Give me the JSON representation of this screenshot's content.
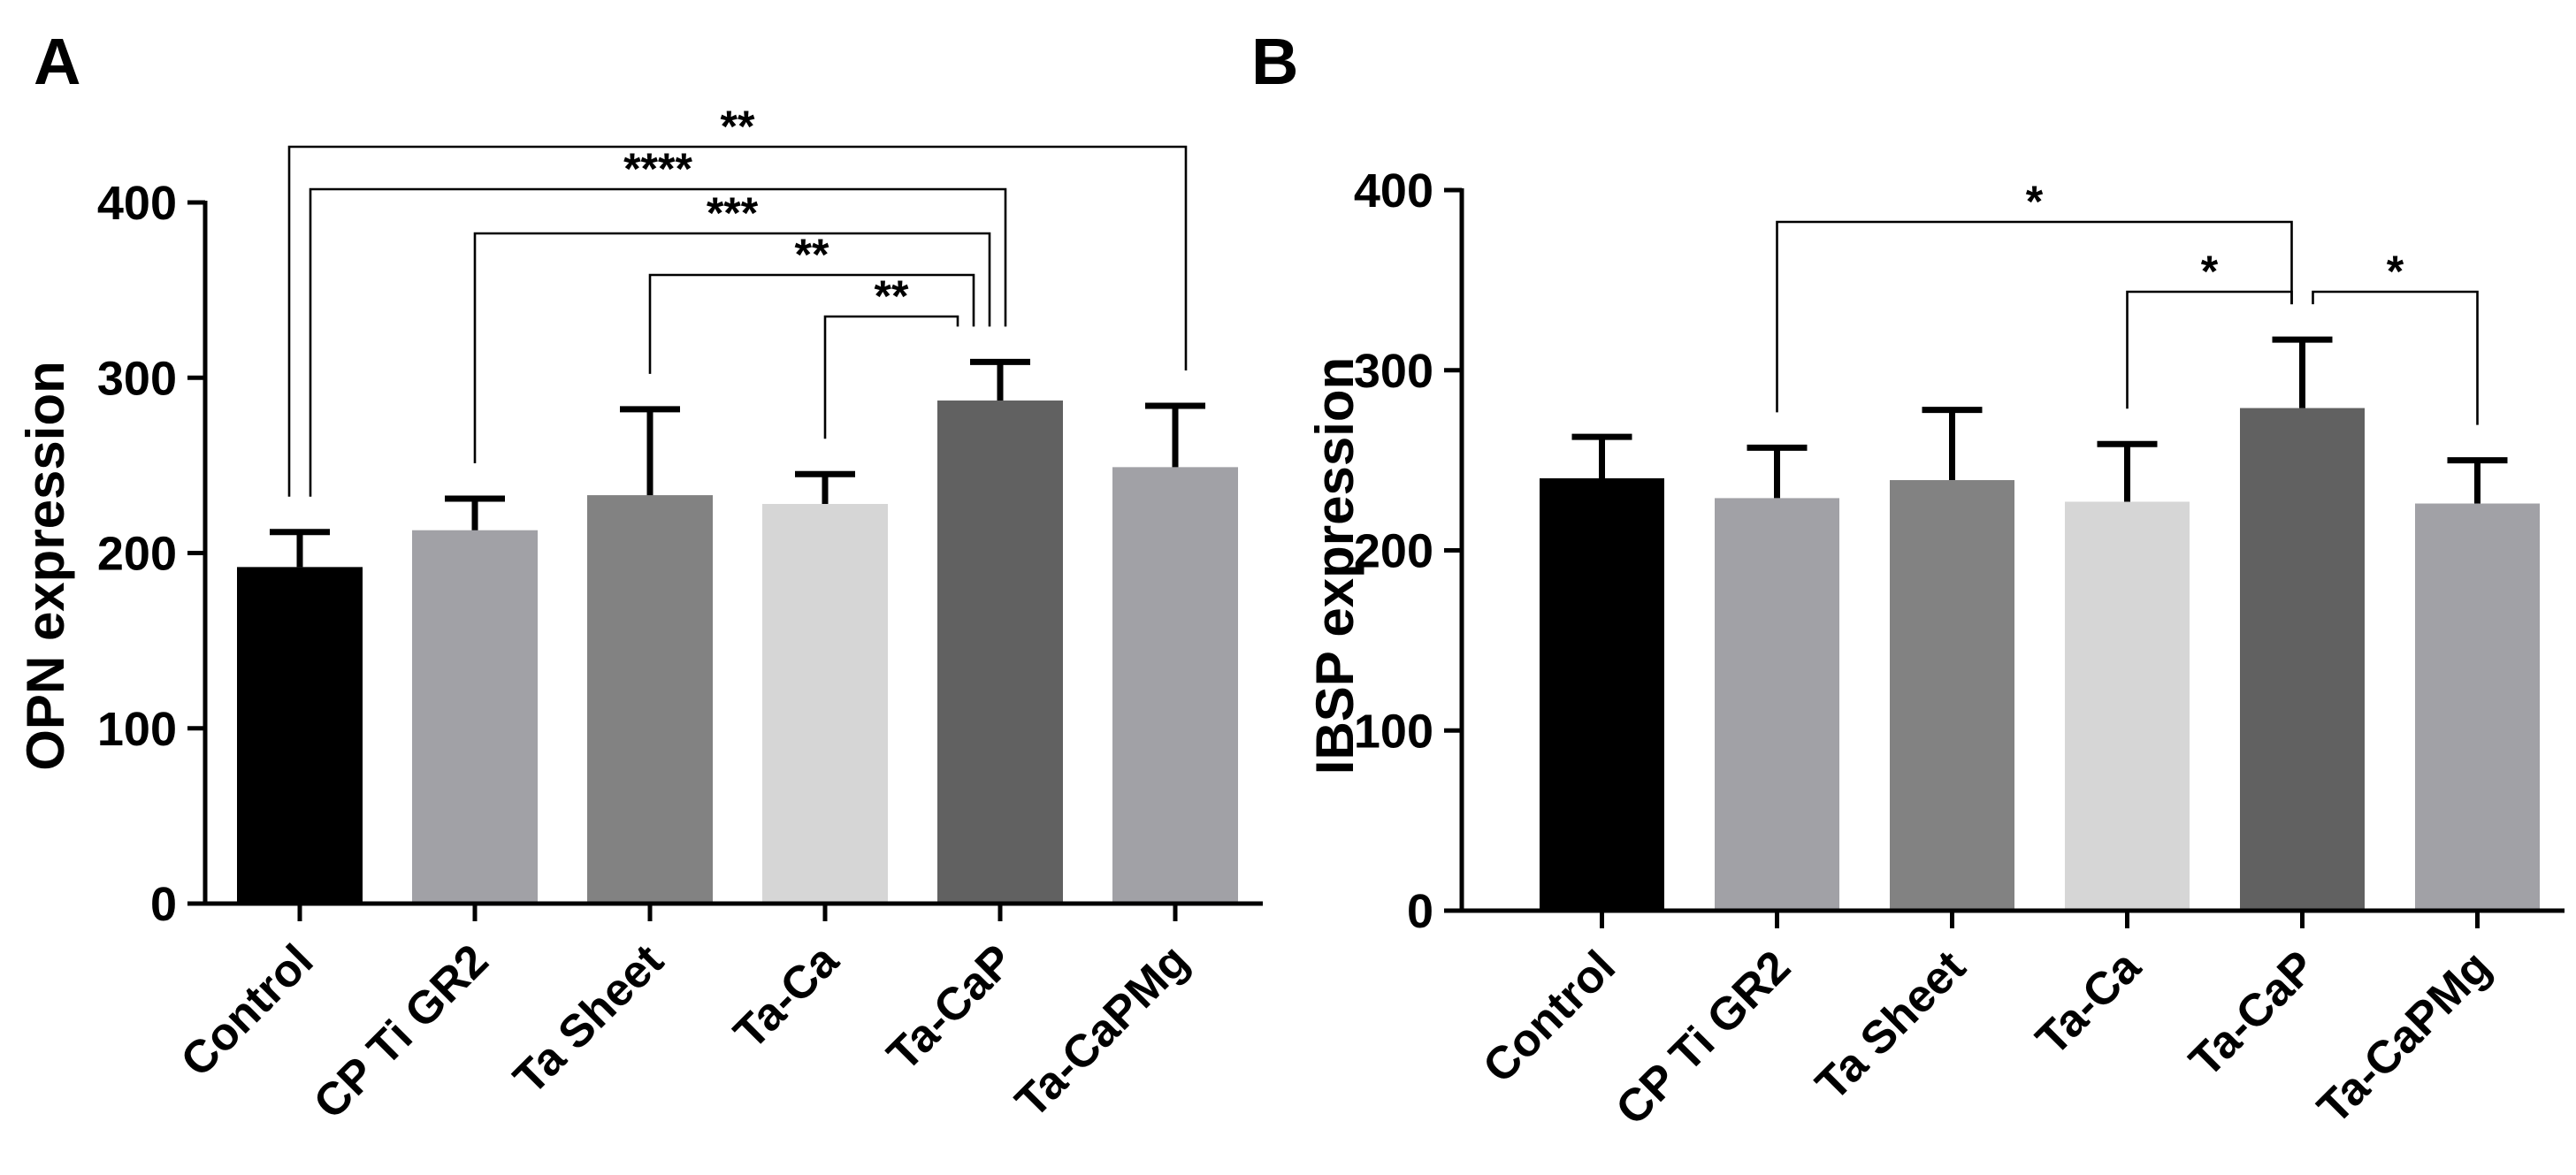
{
  "chart_data": [
    {
      "type": "bar",
      "panel_label": "A",
      "ylabel": "OPN expression",
      "ylim": [
        0,
        400
      ],
      "yticks": [
        "0",
        "100",
        "200",
        "300",
        "400"
      ],
      "categories": [
        "Control",
        "CP Ti GR2",
        "Ta Sheet",
        "Ta-Ca",
        "Ta-CaP",
        "Ta-CaPMg"
      ],
      "values": [
        192,
        213,
        233,
        228,
        287,
        249
      ],
      "errors": [
        20,
        18,
        49,
        17,
        22,
        35
      ],
      "colors": [
        "#000000",
        "#a1a1a6",
        "#828282",
        "#d6d6d6",
        "#616161",
        "#a1a1a6"
      ],
      "significance": [
        {
          "from": 0,
          "to": 5,
          "label": "**"
        },
        {
          "from": 0,
          "to": 4,
          "label": "****"
        },
        {
          "from": 1,
          "to": 4,
          "label": "***"
        },
        {
          "from": 2,
          "to": 4,
          "label": "**"
        },
        {
          "from": 3,
          "to": 4,
          "label": "**"
        }
      ]
    },
    {
      "type": "bar",
      "panel_label": "B",
      "ylabel": "IBSP expression",
      "ylim": [
        0,
        400
      ],
      "yticks": [
        "0",
        "100",
        "200",
        "300",
        "400"
      ],
      "categories": [
        "Control",
        "CP Ti GR2",
        "Ta Sheet",
        "Ta-Ca",
        "Ta-CaP",
        "Ta-CaPMg"
      ],
      "values": [
        240,
        229,
        239,
        227,
        279,
        226
      ],
      "errors": [
        23,
        28,
        39,
        32,
        38,
        24
      ],
      "colors": [
        "#000000",
        "#a1a1a6",
        "#828282",
        "#d6d6d6",
        "#616161",
        "#a1a1a6"
      ],
      "significance": [
        {
          "from": 1,
          "to": 4,
          "label": "*"
        },
        {
          "from": 3,
          "to": 4,
          "label": "*"
        },
        {
          "from": 4,
          "to": 5,
          "label": "*"
        }
      ]
    }
  ]
}
